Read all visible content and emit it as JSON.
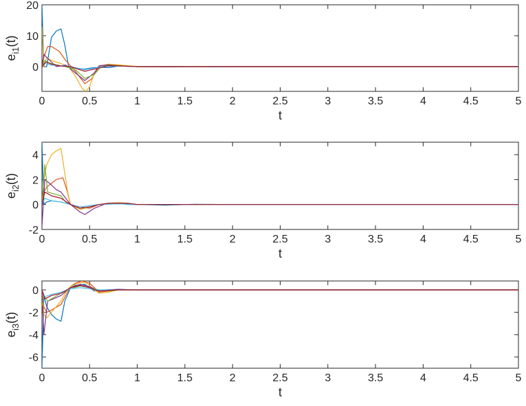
{
  "chart_data": [
    {
      "type": "line",
      "xlabel": "t",
      "ylabel": {
        "main": "e",
        "sub": "i1",
        "suffix": "(t)"
      },
      "xlim": [
        0,
        5
      ],
      "ylim": [
        -8,
        20
      ],
      "xticks": [
        "0",
        "0.5",
        "1",
        "1.5",
        "2",
        "2.5",
        "3",
        "3.5",
        "4",
        "4.5",
        "5"
      ],
      "yticks": [
        "20",
        "10",
        "0"
      ],
      "ytick_values": [
        20,
        10,
        0
      ],
      "grid": false,
      "series": [
        {
          "color": "#0072BD",
          "x": [
            0,
            0.02,
            0.05,
            0.1,
            0.15,
            0.2,
            0.24,
            0.28,
            0.35,
            0.45,
            0.52,
            0.6,
            0.7,
            0.8,
            0.9,
            1.0,
            1.2,
            1.5,
            1.8,
            2.0,
            5.0
          ],
          "y": [
            20,
            0,
            0,
            9.5,
            11.5,
            12.2,
            7,
            0,
            -0.5,
            -0.8,
            -0.4,
            -0.2,
            -0.3,
            0.2,
            0.1,
            0.05,
            0,
            0.1,
            -0.05,
            0,
            0
          ]
        },
        {
          "color": "#D95319",
          "x": [
            0,
            0.02,
            0.06,
            0.1,
            0.18,
            0.25,
            0.35,
            0.45,
            0.52,
            0.6,
            0.7,
            0.8,
            0.9,
            1.0,
            1.3,
            1.6,
            2.0,
            5.0
          ],
          "y": [
            0,
            3,
            6.5,
            6.5,
            5,
            2,
            -1.5,
            -5.5,
            -4,
            0,
            0.5,
            0.5,
            0.2,
            0,
            -0.1,
            0.05,
            0,
            0
          ]
        },
        {
          "color": "#EDB120",
          "x": [
            0,
            0.02,
            0.05,
            0.1,
            0.2,
            0.28,
            0.35,
            0.42,
            0.46,
            0.5,
            0.55,
            0.6,
            0.7,
            0.8,
            0.9,
            1.0,
            1.2,
            1.5,
            2.0,
            5.0
          ],
          "y": [
            13,
            0,
            3,
            2,
            1,
            0,
            -3,
            -7,
            -8,
            -6.5,
            -2,
            0.2,
            0.8,
            0.6,
            0.3,
            0.1,
            0,
            0.05,
            0,
            0
          ]
        },
        {
          "color": "#7E2F8E",
          "x": [
            0,
            0.02,
            0.05,
            0.1,
            0.15,
            0.25,
            0.35,
            0.45,
            0.55,
            0.6,
            0.7,
            0.8,
            0.9,
            1.0,
            1.3,
            2.0,
            5.0
          ],
          "y": [
            0,
            4,
            3,
            1.5,
            0,
            0.5,
            -2,
            -4.5,
            -2,
            0.3,
            0.6,
            0.3,
            0.1,
            0,
            -0.05,
            0,
            0
          ]
        },
        {
          "color": "#77AC30",
          "x": [
            0,
            0.03,
            0.08,
            0.15,
            0.25,
            0.35,
            0.45,
            0.55,
            0.62,
            0.7,
            0.8,
            0.9,
            1.0,
            1.5,
            2.0,
            5.0
          ],
          "y": [
            0,
            2,
            1.2,
            0.6,
            0,
            -1,
            -3.8,
            -2.5,
            0,
            0.4,
            0.3,
            0.1,
            0,
            0,
            0,
            0
          ]
        },
        {
          "color": "#4DBEEE",
          "x": [
            0,
            0.03,
            0.1,
            0.2,
            0.3,
            0.45,
            0.55,
            0.65,
            0.8,
            1.0,
            1.5,
            2.0,
            5.0
          ],
          "y": [
            0,
            1,
            0.5,
            0.3,
            0,
            -1,
            -0.5,
            0.1,
            0.2,
            0,
            0,
            0,
            0
          ]
        },
        {
          "color": "#A2142F",
          "x": [
            0,
            0.04,
            0.1,
            0.2,
            0.3,
            0.45,
            0.55,
            0.7,
            0.85,
            1.0,
            1.5,
            2.0,
            5.0
          ],
          "y": [
            0,
            1.5,
            0.8,
            0.2,
            0,
            -1.5,
            -0.8,
            0.3,
            0.2,
            0,
            0,
            0,
            0
          ]
        }
      ]
    },
    {
      "type": "line",
      "xlabel": "t",
      "ylabel": {
        "main": "e",
        "sub": "i2",
        "suffix": "(t)"
      },
      "xlim": [
        0,
        5
      ],
      "ylim": [
        -2,
        5
      ],
      "xticks": [
        "0",
        "0.5",
        "1",
        "1.5",
        "2",
        "2.5",
        "3",
        "3.5",
        "4",
        "4.5",
        "5"
      ],
      "yticks": [
        "4",
        "2",
        "0",
        "-2"
      ],
      "ytick_values": [
        4,
        2,
        0,
        -2
      ],
      "grid": false,
      "series": [
        {
          "color": "#0072BD",
          "x": [
            0,
            0.02,
            0.05,
            0.1,
            0.2,
            0.3,
            0.4,
            0.5,
            0.6,
            0.7,
            0.8,
            0.9,
            1.0,
            1.3,
            1.6,
            2.0,
            5.0
          ],
          "y": [
            5,
            0,
            0.2,
            0.3,
            0.2,
            0,
            -0.2,
            -0.1,
            0,
            0.05,
            0.1,
            0,
            0,
            -0.05,
            0.02,
            0,
            0
          ]
        },
        {
          "color": "#D95319",
          "x": [
            0,
            0.02,
            0.05,
            0.1,
            0.15,
            0.22,
            0.26,
            0.3,
            0.4,
            0.5,
            0.6,
            0.7,
            0.8,
            0.9,
            1.0,
            1.5,
            2.0,
            5.0
          ],
          "y": [
            0,
            1,
            1.4,
            1.7,
            2.0,
            2.15,
            1.2,
            0,
            -0.2,
            -0.3,
            0,
            0.1,
            0.15,
            0.1,
            0,
            0,
            0,
            0
          ]
        },
        {
          "color": "#EDB120",
          "x": [
            0,
            0.02,
            0.05,
            0.1,
            0.15,
            0.2,
            0.23,
            0.27,
            0.3,
            0.4,
            0.5,
            0.6,
            0.7,
            0.8,
            0.9,
            1.0,
            1.5,
            2.0,
            5.0
          ],
          "y": [
            0,
            2,
            3.2,
            4.0,
            4.3,
            4.5,
            3.0,
            1.0,
            0,
            -0.4,
            -0.2,
            0,
            0.1,
            0.15,
            0.1,
            0,
            0,
            0,
            0
          ]
        },
        {
          "color": "#7E2F8E",
          "x": [
            0,
            0.03,
            0.08,
            0.15,
            0.2,
            0.25,
            0.3,
            0.4,
            0.45,
            0.55,
            0.65,
            0.8,
            1.0,
            1.5,
            2.0,
            5.0
          ],
          "y": [
            -1.8,
            2.0,
            1.7,
            1.2,
            1.0,
            0.5,
            0,
            -0.6,
            -0.8,
            -0.3,
            0,
            0.1,
            0,
            0,
            0,
            0
          ]
        },
        {
          "color": "#77AC30",
          "x": [
            0,
            0.03,
            0.06,
            0.15,
            0.2,
            0.25,
            0.3,
            0.4,
            0.5,
            0.6,
            0.7,
            0.8,
            1.0,
            1.5,
            2.0,
            5.0
          ],
          "y": [
            0,
            3.2,
            1.0,
            0.8,
            0.7,
            0.2,
            0,
            -0.3,
            -0.2,
            0,
            0.05,
            0.1,
            0,
            0,
            0,
            0
          ]
        },
        {
          "color": "#4DBEEE",
          "x": [
            0,
            0.03,
            0.1,
            0.2,
            0.3,
            0.4,
            0.5,
            0.6,
            0.8,
            1.0,
            1.5,
            2.0,
            5.0
          ],
          "y": [
            0,
            0.5,
            0.3,
            0.2,
            0,
            -0.2,
            -0.1,
            0,
            0.05,
            0,
            0,
            0,
            0
          ]
        },
        {
          "color": "#A2142F",
          "x": [
            0,
            0.03,
            0.1,
            0.2,
            0.3,
            0.4,
            0.5,
            0.6,
            0.7,
            0.9,
            1.0,
            1.5,
            2.0,
            5.0
          ],
          "y": [
            0,
            1.0,
            0.7,
            0.5,
            0,
            -0.3,
            -0.2,
            0,
            0.1,
            0.1,
            0,
            0,
            0,
            0
          ]
        }
      ]
    },
    {
      "type": "line",
      "xlabel": "t",
      "ylabel": {
        "main": "e",
        "sub": "i3",
        "suffix": "(t)"
      },
      "xlim": [
        0,
        5
      ],
      "ylim": [
        -7,
        0.8
      ],
      "xticks": [
        "0",
        "0.5",
        "1",
        "1.5",
        "2",
        "2.5",
        "3",
        "3.5",
        "4",
        "4.5",
        "5"
      ],
      "yticks": [
        "0",
        "-2",
        "-4",
        "-6"
      ],
      "ytick_values": [
        0,
        -2,
        -4,
        -6
      ],
      "grid": false,
      "series": [
        {
          "color": "#0072BD",
          "x": [
            0,
            0.02,
            0.05,
            0.1,
            0.15,
            0.2,
            0.24,
            0.3,
            0.35,
            0.45,
            0.55,
            0.65,
            0.8,
            1.0,
            1.5,
            2.0,
            5.0
          ],
          "y": [
            -7,
            -0.5,
            -1.5,
            -2.2,
            -2.6,
            -2.8,
            -1.0,
            0.2,
            0.4,
            0.5,
            -0.1,
            0,
            0.05,
            0,
            0,
            0,
            0
          ]
        },
        {
          "color": "#D95319",
          "x": [
            0,
            0.02,
            0.05,
            0.1,
            0.2,
            0.25,
            0.3,
            0.35,
            0.42,
            0.5,
            0.55,
            0.6,
            0.7,
            0.8,
            1.0,
            1.5,
            2.0,
            5.0
          ],
          "y": [
            0,
            -1.5,
            -2.0,
            -1.8,
            -1.3,
            -0.5,
            0.3,
            0.6,
            0.8,
            0.6,
            0.2,
            -0.2,
            -0.1,
            0,
            0,
            0,
            0,
            0
          ]
        },
        {
          "color": "#EDB120",
          "x": [
            0,
            0.02,
            0.05,
            0.1,
            0.2,
            0.25,
            0.3,
            0.38,
            0.45,
            0.5,
            0.55,
            0.6,
            0.7,
            0.8,
            1.0,
            1.5,
            2.0,
            5.0
          ],
          "y": [
            0,
            -2.2,
            -2.5,
            -2.0,
            -1.0,
            -0.2,
            0.3,
            0.6,
            0.7,
            0.4,
            0,
            -0.3,
            -0.2,
            0,
            0,
            0,
            0,
            0
          ]
        },
        {
          "color": "#7E2F8E",
          "x": [
            0,
            0.02,
            0.06,
            0.12,
            0.2,
            0.3,
            0.4,
            0.5,
            0.6,
            0.7,
            0.8,
            1.0,
            1.5,
            2.0,
            5.0
          ],
          "y": [
            0,
            -4.0,
            -1.0,
            -0.8,
            -0.5,
            0.2,
            0.5,
            0.3,
            -0.1,
            0,
            0.05,
            0,
            0,
            0,
            0
          ]
        },
        {
          "color": "#77AC30",
          "x": [
            0,
            0.02,
            0.06,
            0.12,
            0.2,
            0.3,
            0.4,
            0.5,
            0.6,
            0.7,
            0.8,
            1.0,
            1.5,
            2.0,
            5.0
          ],
          "y": [
            -1.5,
            -0.5,
            -1.0,
            -0.7,
            -0.3,
            0.1,
            0.35,
            0.2,
            0,
            -0.1,
            0,
            0,
            0,
            0,
            0
          ]
        },
        {
          "color": "#4DBEEE",
          "x": [
            0,
            0.03,
            0.1,
            0.2,
            0.3,
            0.4,
            0.5,
            0.6,
            0.8,
            1.0,
            1.5,
            2.0,
            5.0
          ],
          "y": [
            0,
            -0.6,
            -0.4,
            -0.2,
            0.1,
            0.2,
            0.1,
            0,
            0,
            0,
            0,
            0,
            0
          ]
        },
        {
          "color": "#A2142F",
          "x": [
            0,
            0.03,
            0.1,
            0.2,
            0.3,
            0.4,
            0.5,
            0.6,
            0.8,
            1.0,
            1.5,
            2.0,
            5.0
          ],
          "y": [
            0,
            -0.8,
            -0.5,
            -0.3,
            0.2,
            0.4,
            0.2,
            -0.1,
            0,
            0,
            0,
            0,
            0
          ]
        }
      ]
    }
  ]
}
